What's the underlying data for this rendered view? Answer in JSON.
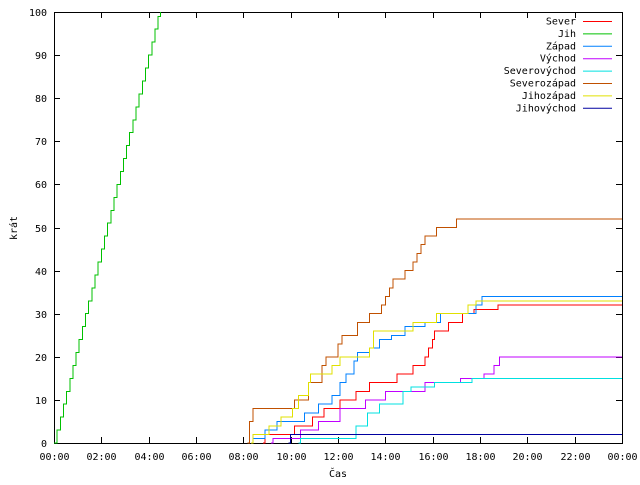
{
  "chart_data": {
    "type": "line",
    "xlabel": "Čas",
    "ylabel": "krát",
    "ylim": [
      0,
      100
    ],
    "xlim": [
      0,
      1440
    ],
    "x_tick_labels": [
      "00:00",
      "02:00",
      "04:00",
      "06:00",
      "08:00",
      "10:00",
      "12:00",
      "14:00",
      "16:00",
      "18:00",
      "20:00",
      "22:00",
      "00:00"
    ],
    "x_tick_values": [
      0,
      120,
      240,
      360,
      480,
      600,
      720,
      840,
      960,
      1080,
      1200,
      1320,
      1440
    ],
    "y_tick_labels": [
      "0",
      "10",
      "20",
      "30",
      "40",
      "50",
      "60",
      "70",
      "80",
      "90",
      "100"
    ],
    "y_tick_values": [
      0,
      10,
      20,
      30,
      40,
      50,
      60,
      70,
      80,
      90,
      100
    ],
    "legend_position": "top-right",
    "grid": false,
    "series": [
      {
        "name": "Sever",
        "color": "#ff0000",
        "points": [
          [
            530,
            0
          ],
          [
            535,
            2
          ],
          [
            600,
            2
          ],
          [
            610,
            4
          ],
          [
            650,
            4
          ],
          [
            655,
            6
          ],
          [
            680,
            6
          ],
          [
            685,
            8
          ],
          [
            720,
            8
          ],
          [
            725,
            10
          ],
          [
            760,
            10
          ],
          [
            765,
            12
          ],
          [
            790,
            12
          ],
          [
            800,
            14
          ],
          [
            860,
            14
          ],
          [
            870,
            16
          ],
          [
            900,
            16
          ],
          [
            910,
            18
          ],
          [
            930,
            18
          ],
          [
            940,
            20
          ],
          [
            950,
            22
          ],
          [
            960,
            24
          ],
          [
            965,
            26
          ],
          [
            990,
            26
          ],
          [
            1000,
            28
          ],
          [
            1030,
            28
          ],
          [
            1035,
            30
          ],
          [
            1060,
            30
          ],
          [
            1065,
            31
          ],
          [
            1120,
            31
          ],
          [
            1125,
            32
          ],
          [
            1440,
            32
          ]
        ]
      },
      {
        "name": "Jih",
        "color": "#00c000",
        "points": [
          [
            0,
            0
          ],
          [
            8,
            3
          ],
          [
            16,
            6
          ],
          [
            24,
            9
          ],
          [
            32,
            12
          ],
          [
            40,
            15
          ],
          [
            48,
            18
          ],
          [
            56,
            21
          ],
          [
            64,
            24
          ],
          [
            72,
            27
          ],
          [
            80,
            30
          ],
          [
            88,
            33
          ],
          [
            96,
            36
          ],
          [
            104,
            39
          ],
          [
            112,
            42
          ],
          [
            120,
            45
          ],
          [
            128,
            48
          ],
          [
            136,
            51
          ],
          [
            144,
            54
          ],
          [
            152,
            57
          ],
          [
            160,
            60
          ],
          [
            168,
            63
          ],
          [
            176,
            66
          ],
          [
            184,
            69
          ],
          [
            192,
            72
          ],
          [
            200,
            75
          ],
          [
            208,
            78
          ],
          [
            216,
            81
          ],
          [
            224,
            84
          ],
          [
            232,
            87
          ],
          [
            240,
            90
          ],
          [
            248,
            93
          ],
          [
            256,
            96
          ],
          [
            264,
            99
          ],
          [
            270,
            100
          ]
        ]
      },
      {
        "name": "Západ",
        "color": "#0080ff",
        "points": [
          [
            500,
            0
          ],
          [
            505,
            1
          ],
          [
            530,
            1
          ],
          [
            535,
            3
          ],
          [
            560,
            3
          ],
          [
            565,
            5
          ],
          [
            630,
            5
          ],
          [
            635,
            7
          ],
          [
            660,
            7
          ],
          [
            670,
            9
          ],
          [
            700,
            9
          ],
          [
            705,
            11
          ],
          [
            720,
            11
          ],
          [
            725,
            14
          ],
          [
            735,
            14
          ],
          [
            740,
            16
          ],
          [
            755,
            16
          ],
          [
            760,
            19
          ],
          [
            770,
            21
          ],
          [
            790,
            21
          ],
          [
            800,
            22
          ],
          [
            820,
            22
          ],
          [
            825,
            24
          ],
          [
            850,
            24
          ],
          [
            855,
            25
          ],
          [
            880,
            25
          ],
          [
            890,
            27
          ],
          [
            930,
            27
          ],
          [
            940,
            28
          ],
          [
            970,
            28
          ],
          [
            980,
            30
          ],
          [
            1060,
            30
          ],
          [
            1070,
            32
          ],
          [
            1080,
            32
          ],
          [
            1085,
            34
          ],
          [
            1440,
            34
          ]
        ]
      },
      {
        "name": "Východ",
        "color": "#c000ff",
        "points": [
          [
            550,
            0
          ],
          [
            555,
            1
          ],
          [
            620,
            1
          ],
          [
            625,
            3
          ],
          [
            660,
            3
          ],
          [
            670,
            5
          ],
          [
            720,
            5
          ],
          [
            725,
            8
          ],
          [
            780,
            8
          ],
          [
            790,
            10
          ],
          [
            830,
            10
          ],
          [
            840,
            12
          ],
          [
            930,
            12
          ],
          [
            940,
            14
          ],
          [
            1020,
            14
          ],
          [
            1030,
            15
          ],
          [
            1080,
            15
          ],
          [
            1090,
            16
          ],
          [
            1110,
            16
          ],
          [
            1115,
            18
          ],
          [
            1120,
            18
          ],
          [
            1130,
            20
          ],
          [
            1440,
            20
          ]
        ]
      },
      {
        "name": "Severovýchod",
        "color": "#00e0e0",
        "points": [
          [
            620,
            0
          ],
          [
            625,
            1
          ],
          [
            760,
            1
          ],
          [
            765,
            4
          ],
          [
            790,
            4
          ],
          [
            795,
            7
          ],
          [
            820,
            7
          ],
          [
            825,
            9
          ],
          [
            880,
            9
          ],
          [
            885,
            12
          ],
          [
            900,
            12
          ],
          [
            905,
            13
          ],
          [
            960,
            13
          ],
          [
            965,
            14
          ],
          [
            1000,
            14
          ],
          [
            1010,
            14
          ],
          [
            1050,
            14
          ],
          [
            1060,
            15
          ],
          [
            1440,
            15
          ]
        ]
      },
      {
        "name": "Severozápad",
        "color": "#c05000",
        "points": [
          [
            490,
            0
          ],
          [
            495,
            5
          ],
          [
            500,
            5
          ],
          [
            505,
            8
          ],
          [
            600,
            8
          ],
          [
            610,
            10
          ],
          [
            640,
            10
          ],
          [
            645,
            14
          ],
          [
            670,
            14
          ],
          [
            680,
            18
          ],
          [
            690,
            20
          ],
          [
            710,
            20
          ],
          [
            720,
            23
          ],
          [
            730,
            25
          ],
          [
            760,
            25
          ],
          [
            770,
            28
          ],
          [
            790,
            28
          ],
          [
            800,
            30
          ],
          [
            820,
            30
          ],
          [
            830,
            32
          ],
          [
            840,
            34
          ],
          [
            850,
            36
          ],
          [
            860,
            38
          ],
          [
            880,
            38
          ],
          [
            890,
            40
          ],
          [
            900,
            40
          ],
          [
            910,
            42
          ],
          [
            920,
            44
          ],
          [
            930,
            46
          ],
          [
            940,
            48
          ],
          [
            960,
            48
          ],
          [
            970,
            50
          ],
          [
            1010,
            50
          ],
          [
            1020,
            52
          ],
          [
            1440,
            52
          ]
        ]
      },
      {
        "name": "Jihozápad",
        "color": "#e0e000",
        "points": [
          [
            500,
            0
          ],
          [
            505,
            2
          ],
          [
            540,
            2
          ],
          [
            545,
            4
          ],
          [
            570,
            4
          ],
          [
            575,
            6
          ],
          [
            600,
            6
          ],
          [
            605,
            8
          ],
          [
            615,
            8
          ],
          [
            620,
            11
          ],
          [
            640,
            11
          ],
          [
            645,
            14
          ],
          [
            650,
            16
          ],
          [
            700,
            16
          ],
          [
            705,
            18
          ],
          [
            720,
            18
          ],
          [
            725,
            20
          ],
          [
            790,
            20
          ],
          [
            800,
            22
          ],
          [
            810,
            26
          ],
          [
            900,
            26
          ],
          [
            910,
            28
          ],
          [
            960,
            28
          ],
          [
            970,
            30
          ],
          [
            1040,
            30
          ],
          [
            1050,
            32
          ],
          [
            1060,
            32
          ],
          [
            1070,
            33
          ],
          [
            1440,
            33
          ]
        ]
      },
      {
        "name": "Jihovýchod",
        "color": "#0000a0",
        "points": [
          [
            595,
            0
          ],
          [
            600,
            2
          ],
          [
            1440,
            2
          ]
        ]
      }
    ]
  }
}
